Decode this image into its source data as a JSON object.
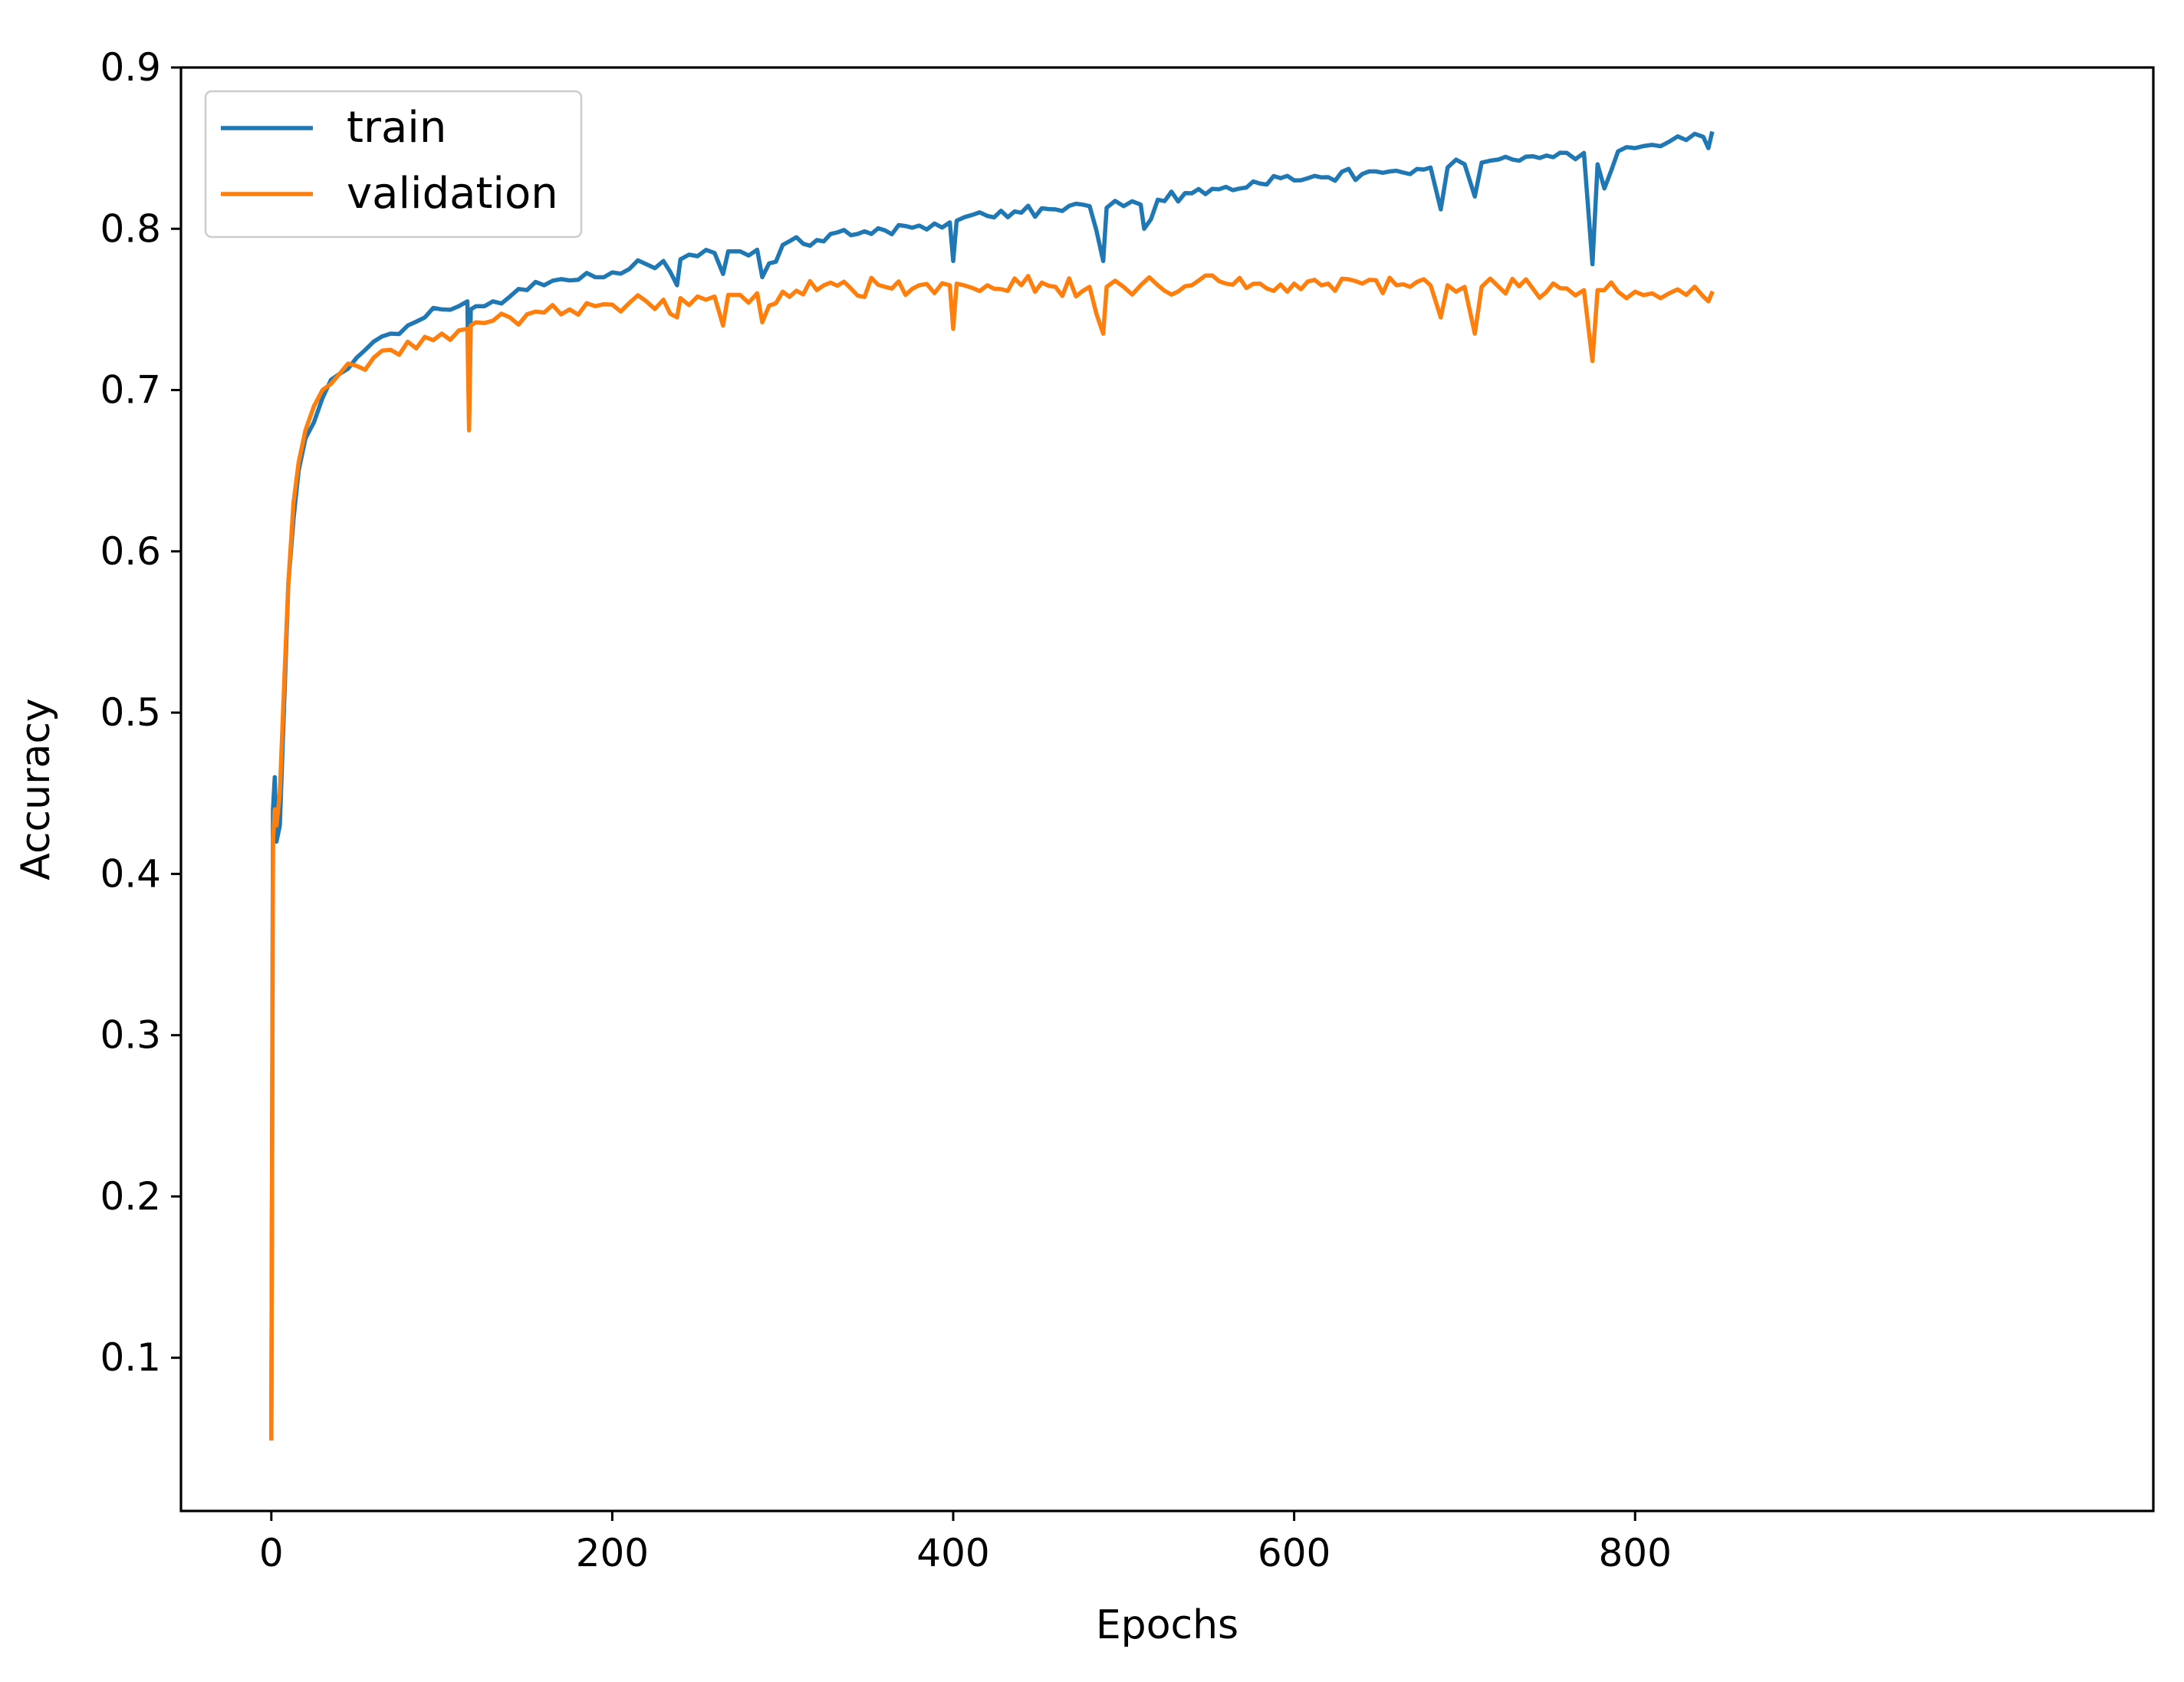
{
  "chart_data": {
    "type": "line",
    "title": "",
    "xlabel": "Epochs",
    "ylabel": "Accuracy",
    "xlim": [
      -53,
      1104
    ],
    "ylim": [
      0.005,
      0.9
    ],
    "xticks": [
      0,
      200,
      400,
      600,
      800
    ],
    "xtick_labels": [
      "0",
      "200",
      "400",
      "600",
      "800"
    ],
    "yticks": [
      0.1,
      0.2,
      0.3,
      0.4,
      0.5,
      0.6,
      0.7,
      0.8,
      0.9
    ],
    "ytick_labels": [
      "0.1",
      "0.2",
      "0.3",
      "0.4",
      "0.5",
      "0.6",
      "0.7",
      "0.8",
      "0.9"
    ],
    "grid": false,
    "legend_position": "top-left",
    "series": [
      {
        "name": "train",
        "color": "#1f77b4",
        "x": [
          0,
          1,
          2,
          3,
          5,
          8,
          10,
          13,
          16,
          20,
          25,
          30,
          40,
          50,
          60,
          70,
          80,
          90,
          100,
          110,
          115,
          116,
          117,
          120,
          130,
          140,
          150,
          160,
          175,
          190,
          200,
          210,
          220,
          230,
          238,
          240,
          250,
          260,
          265,
          268,
          275,
          285,
          288,
          300,
          320,
          340,
          360,
          380,
          398,
          400,
          402,
          420,
          440,
          460,
          480,
          488,
          490,
          500,
          510,
          512,
          520,
          540,
          560,
          580,
          600,
          620,
          640,
          660,
          680,
          686,
          690,
          700,
          706,
          710,
          720,
          740,
          760,
          770,
          775,
          778,
          782,
          790,
          800,
          810,
          820,
          830,
          840,
          843,
          845
        ],
        "y": [
          0.05,
          0.44,
          0.46,
          0.42,
          0.43,
          0.52,
          0.58,
          0.62,
          0.65,
          0.67,
          0.68,
          0.695,
          0.71,
          0.72,
          0.73,
          0.735,
          0.74,
          0.745,
          0.75,
          0.752,
          0.755,
          0.68,
          0.75,
          0.752,
          0.755,
          0.758,
          0.762,
          0.765,
          0.768,
          0.77,
          0.773,
          0.775,
          0.778,
          0.78,
          0.765,
          0.781,
          0.783,
          0.785,
          0.772,
          0.786,
          0.786,
          0.787,
          0.77,
          0.79,
          0.793,
          0.796,
          0.799,
          0.802,
          0.804,
          0.78,
          0.805,
          0.808,
          0.81,
          0.812,
          0.814,
          0.78,
          0.813,
          0.814,
          0.815,
          0.8,
          0.818,
          0.822,
          0.826,
          0.828,
          0.83,
          0.832,
          0.834,
          0.836,
          0.838,
          0.812,
          0.838,
          0.84,
          0.82,
          0.841,
          0.843,
          0.845,
          0.847,
          0.847,
          0.778,
          0.84,
          0.825,
          0.848,
          0.85,
          0.852,
          0.854,
          0.855,
          0.857,
          0.85,
          0.859
        ]
      },
      {
        "name": "validation",
        "color": "#ff7f0e",
        "x": [
          0,
          1,
          2,
          3,
          5,
          8,
          10,
          13,
          16,
          20,
          25,
          30,
          40,
          50,
          60,
          70,
          80,
          90,
          100,
          110,
          115,
          116,
          117,
          120,
          130,
          140,
          150,
          160,
          175,
          190,
          200,
          210,
          220,
          230,
          238,
          240,
          250,
          260,
          265,
          268,
          275,
          285,
          288,
          300,
          320,
          340,
          360,
          380,
          398,
          400,
          402,
          420,
          440,
          460,
          480,
          488,
          490,
          500,
          510,
          520,
          540,
          560,
          580,
          600,
          620,
          640,
          660,
          680,
          686,
          690,
          700,
          706,
          710,
          720,
          740,
          760,
          770,
          775,
          778,
          782,
          790,
          800,
          810,
          820,
          830,
          840,
          843,
          845
        ],
        "y": [
          0.05,
          0.42,
          0.44,
          0.43,
          0.45,
          0.53,
          0.58,
          0.63,
          0.655,
          0.675,
          0.69,
          0.7,
          0.71,
          0.715,
          0.72,
          0.725,
          0.73,
          0.733,
          0.735,
          0.737,
          0.738,
          0.675,
          0.74,
          0.742,
          0.743,
          0.745,
          0.747,
          0.748,
          0.75,
          0.752,
          0.753,
          0.754,
          0.755,
          0.756,
          0.745,
          0.757,
          0.758,
          0.758,
          0.74,
          0.759,
          0.759,
          0.76,
          0.742,
          0.761,
          0.762,
          0.763,
          0.764,
          0.765,
          0.765,
          0.738,
          0.766,
          0.765,
          0.765,
          0.764,
          0.764,
          0.735,
          0.764,
          0.764,
          0.765,
          0.765,
          0.765,
          0.766,
          0.766,
          0.766,
          0.766,
          0.766,
          0.765,
          0.765,
          0.745,
          0.765,
          0.764,
          0.735,
          0.764,
          0.764,
          0.763,
          0.763,
          0.762,
          0.718,
          0.762,
          0.762,
          0.761,
          0.761,
          0.76,
          0.76,
          0.759,
          0.758,
          0.755,
          0.76
        ]
      }
    ]
  }
}
